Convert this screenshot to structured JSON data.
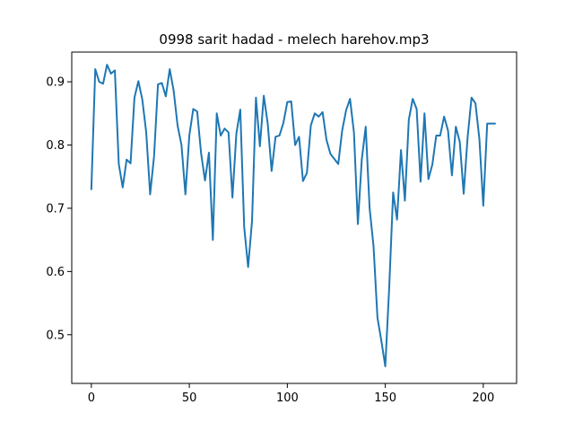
{
  "chart_data": {
    "type": "line",
    "title": "0998 sarit hadad - melech harehov.mp3",
    "xlabel": "",
    "ylabel": "",
    "xlim": [
      -10,
      217
    ],
    "ylim": [
      0.423,
      0.947
    ],
    "x_ticks": [
      0,
      50,
      100,
      150,
      200
    ],
    "y_ticks": [
      0.5,
      0.6,
      0.7,
      0.8,
      0.9
    ],
    "grid": false,
    "legend": "none",
    "line_color": "#1f77b4",
    "series": [
      {
        "x": [
          0,
          2,
          4,
          6,
          8,
          10,
          12,
          14,
          16,
          18,
          20,
          22,
          24,
          26,
          28,
          30,
          32,
          34,
          36,
          38,
          40,
          42,
          44,
          46,
          48,
          50,
          52,
          54,
          56,
          58,
          60,
          62,
          64,
          66,
          68,
          70,
          72,
          74,
          76,
          78,
          80,
          82,
          84,
          86,
          88,
          90,
          92,
          94,
          96,
          98,
          100,
          102,
          104,
          106,
          108,
          110,
          112,
          114,
          116,
          118,
          120,
          122,
          124,
          126,
          128,
          130,
          132,
          134,
          136,
          138,
          140,
          142,
          144,
          146,
          148,
          150,
          152,
          154,
          156,
          158,
          160,
          162,
          164,
          166,
          168,
          170,
          172,
          174,
          176,
          178,
          180,
          182,
          184,
          186,
          188,
          190,
          192,
          194,
          196,
          198,
          200,
          202,
          204,
          206
        ],
        "y": [
          0.73,
          0.92,
          0.9,
          0.897,
          0.927,
          0.913,
          0.918,
          0.77,
          0.733,
          0.777,
          0.771,
          0.875,
          0.901,
          0.872,
          0.82,
          0.722,
          0.782,
          0.896,
          0.898,
          0.877,
          0.92,
          0.886,
          0.831,
          0.8,
          0.722,
          0.815,
          0.857,
          0.853,
          0.787,
          0.744,
          0.788,
          0.65,
          0.85,
          0.815,
          0.826,
          0.82,
          0.717,
          0.818,
          0.856,
          0.67,
          0.607,
          0.68,
          0.875,
          0.798,
          0.878,
          0.834,
          0.759,
          0.813,
          0.815,
          0.835,
          0.868,
          0.869,
          0.8,
          0.813,
          0.743,
          0.756,
          0.831,
          0.85,
          0.845,
          0.852,
          0.808,
          0.786,
          0.778,
          0.77,
          0.823,
          0.855,
          0.873,
          0.82,
          0.675,
          0.777,
          0.829,
          0.7,
          0.64,
          0.527,
          0.49,
          0.45,
          0.575,
          0.725,
          0.682,
          0.792,
          0.712,
          0.84,
          0.873,
          0.857,
          0.742,
          0.85,
          0.746,
          0.769,
          0.815,
          0.815,
          0.845,
          0.823,
          0.752,
          0.829,
          0.805,
          0.723,
          0.812,
          0.875,
          0.866,
          0.81,
          0.704,
          0.834,
          0.834,
          0.834
        ]
      }
    ]
  }
}
